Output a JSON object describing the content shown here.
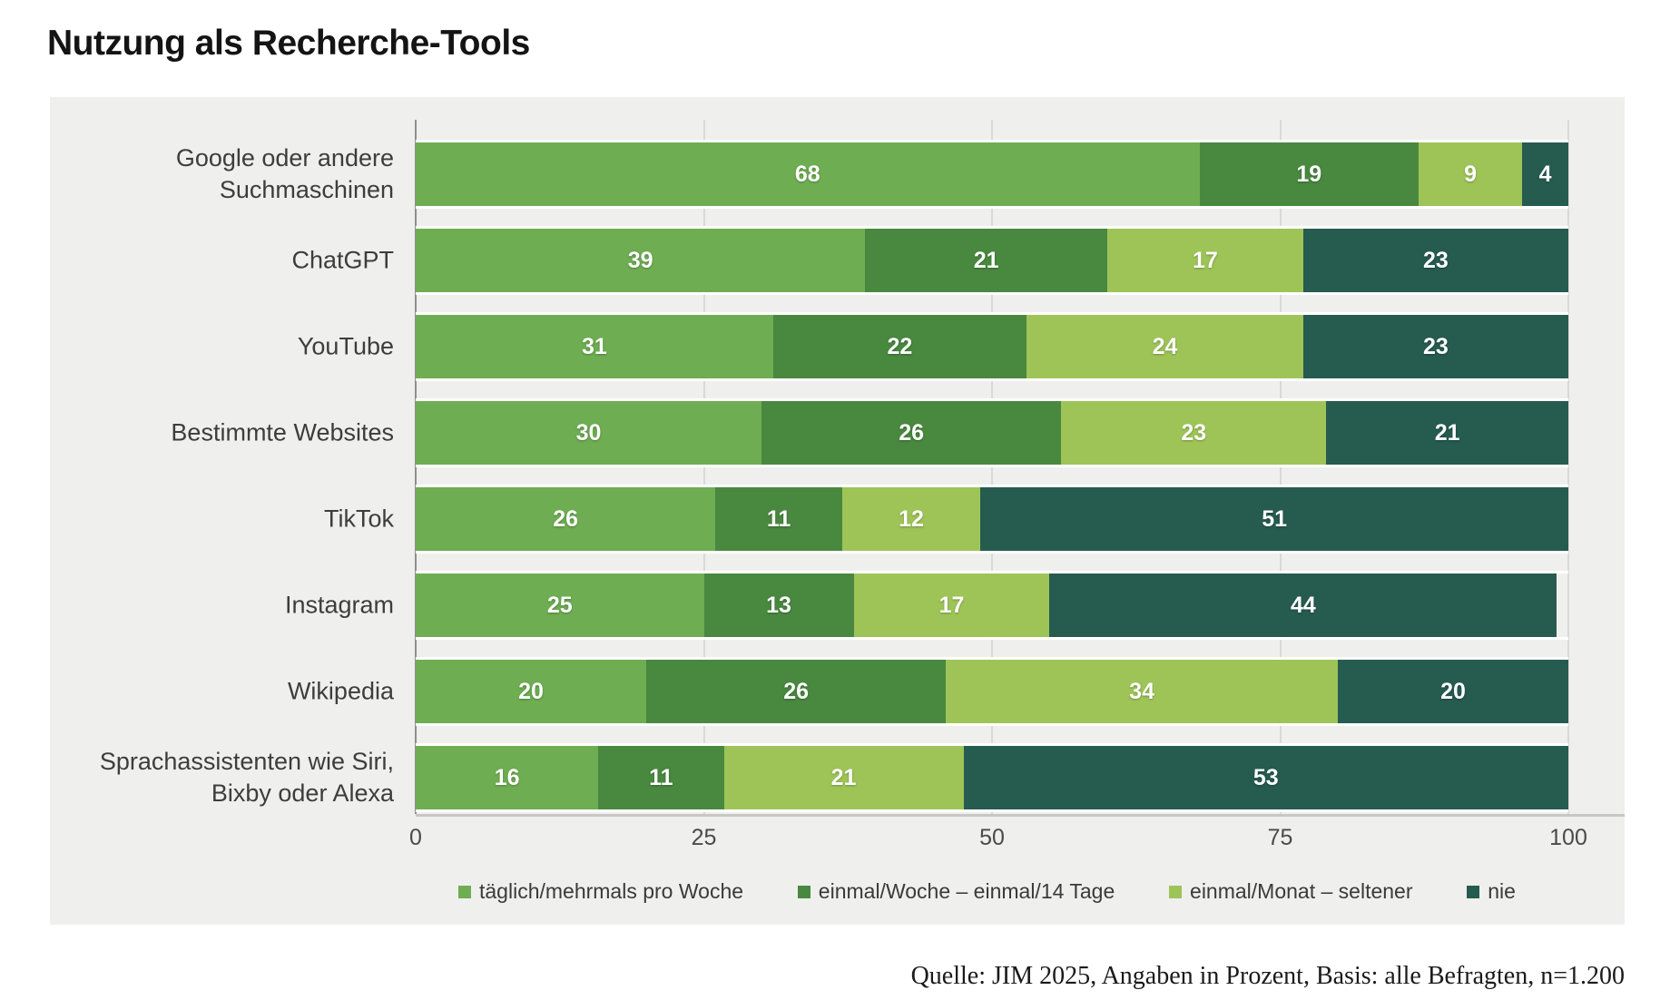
{
  "title": "Nutzung als Recherche-Tools",
  "source": "Quelle: JIM 2025, Angaben in Prozent, Basis: alle Befragten, n=1.200",
  "colors": {
    "daily": "#6ead52",
    "weekly": "#49883f",
    "monthly": "#9ec457",
    "never": "#265b50",
    "panel_bg": "#efefee",
    "gridline": "#d9d9d7",
    "axis": "#8f8f8f"
  },
  "chart_data": {
    "type": "bar",
    "orientation": "horizontal",
    "stacked": true,
    "title": "Nutzung als Recherche-Tools",
    "categories": [
      "Google oder andere\nSuchmaschinen",
      "ChatGPT",
      "YouTube",
      "Bestimmte Websites",
      "TikTok",
      "Instagram",
      "Wikipedia",
      "Sprachassistenten wie Siri,\nBixby oder Alexa"
    ],
    "series": [
      {
        "name": "täglich/mehrmals pro Woche",
        "color": "#6ead52",
        "values": [
          68,
          39,
          31,
          30,
          26,
          25,
          20,
          16
        ]
      },
      {
        "name": "einmal/Woche – einmal/14 Tage",
        "color": "#49883f",
        "values": [
          19,
          21,
          22,
          26,
          11,
          13,
          26,
          11
        ]
      },
      {
        "name": "einmal/Monat – seltener",
        "color": "#9ec457",
        "values": [
          9,
          17,
          24,
          23,
          12,
          17,
          34,
          21
        ]
      },
      {
        "name": "nie",
        "color": "#265b50",
        "values": [
          4,
          23,
          23,
          21,
          51,
          44,
          20,
          53
        ]
      }
    ],
    "xlim": [
      0,
      100
    ],
    "x_ticks": [
      0,
      25,
      50,
      75,
      100
    ],
    "grid": true,
    "legend_position": "bottom",
    "value_labels": true,
    "unit": "Prozent"
  }
}
